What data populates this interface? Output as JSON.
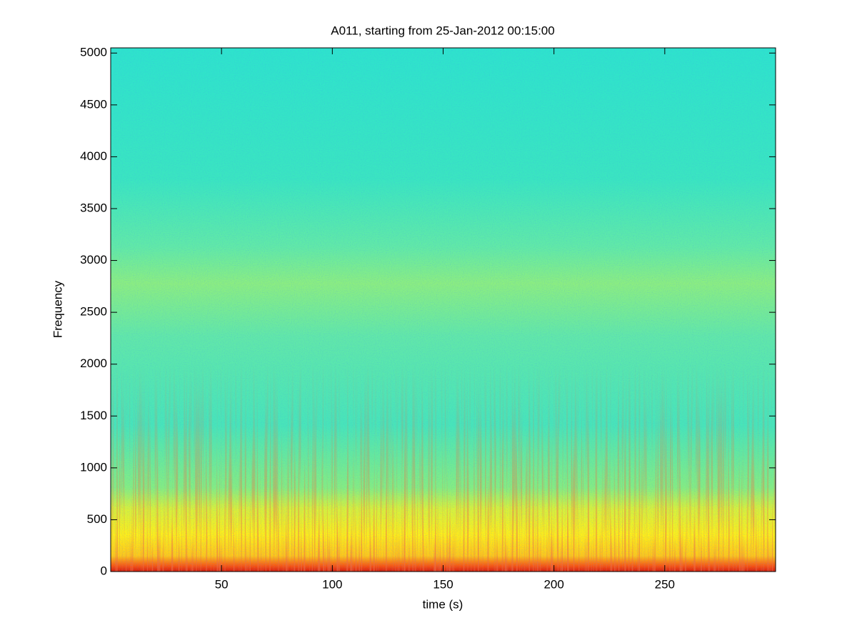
{
  "chart_data": {
    "type": "spectrogram",
    "title": "A011, starting from 25-Jan-2012 00:15:00",
    "x_label": "time (s)",
    "y_label": "Frequency",
    "xlim": [
      0,
      300
    ],
    "ylim": [
      0,
      5050
    ],
    "xticks": [
      50,
      100,
      150,
      200,
      250
    ],
    "yticks": [
      0,
      500,
      1000,
      1500,
      2000,
      2500,
      3000,
      3500,
      4000,
      4500,
      5000
    ]
  }
}
